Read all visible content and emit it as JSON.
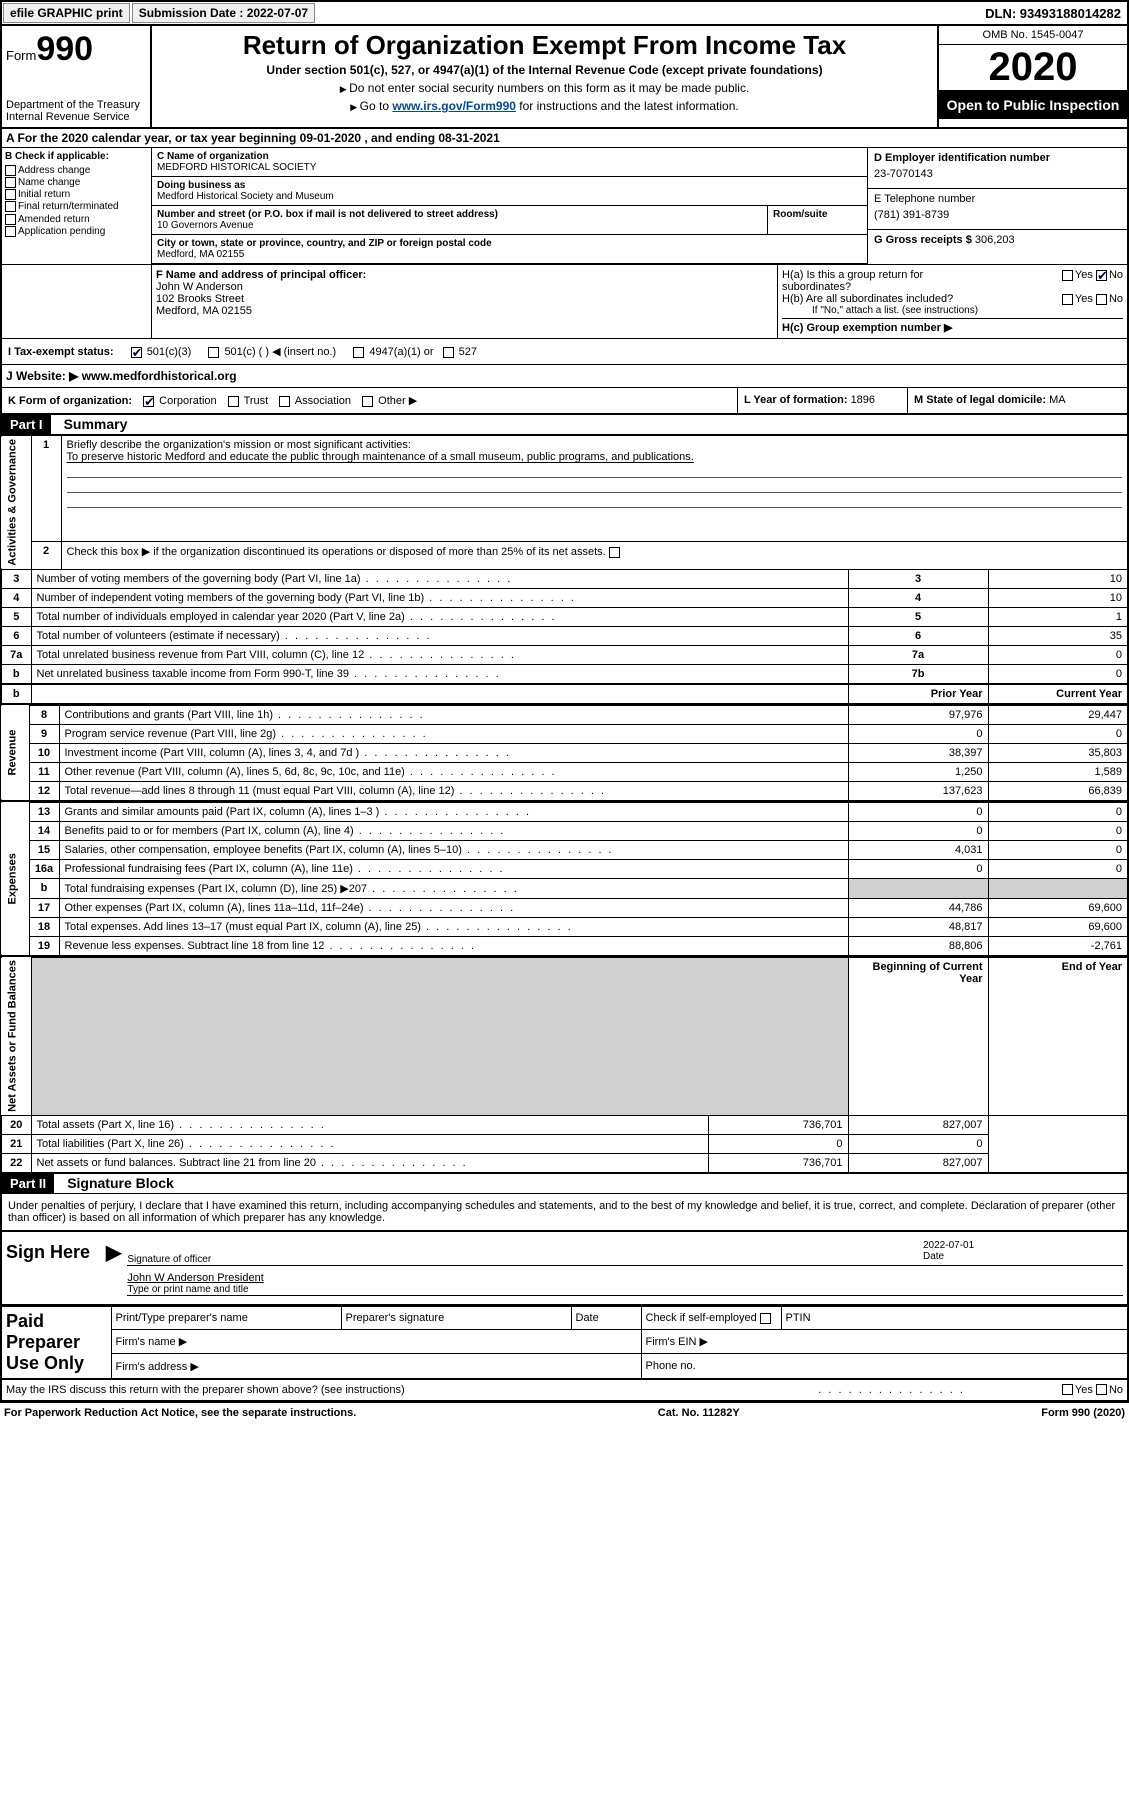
{
  "topbar": {
    "efile": "efile GRAPHIC print",
    "submission_label": "Submission Date : 2022-07-07",
    "dln": "DLN: 93493188014282"
  },
  "header": {
    "form_word": "Form",
    "form_num": "990",
    "dept": "Department of the Treasury",
    "irs": "Internal Revenue Service",
    "title": "Return of Organization Exempt From Income Tax",
    "subtitle": "Under section 501(c), 527, or 4947(a)(1) of the Internal Revenue Code (except private foundations)",
    "line1": "Do not enter social security numbers on this form as it may be made public.",
    "line2_a": "Go to ",
    "line2_link": "www.irs.gov/Form990",
    "line2_b": " for instructions and the latest information.",
    "omb": "OMB No. 1545-0047",
    "year": "2020",
    "open": "Open to Public Inspection"
  },
  "sectionA": "A  For the 2020 calendar year, or tax year beginning 09-01-2020   , and ending 08-31-2021",
  "boxB": {
    "label": "B Check if applicable:",
    "items": [
      "Address change",
      "Name change",
      "Initial return",
      "Final return/terminated",
      "Amended return",
      "Application pending"
    ]
  },
  "boxC": {
    "name_label": "C Name of organization",
    "name": "MEDFORD HISTORICAL SOCIETY",
    "dba_label": "Doing business as",
    "dba": "Medford Historical Society and Museum",
    "addr_label": "Number and street (or P.O. box if mail is not delivered to street address)",
    "room_label": "Room/suite",
    "addr": "10 Governors Avenue",
    "city_label": "City or town, state or province, country, and ZIP or foreign postal code",
    "city": "Medford, MA  02155"
  },
  "boxD": {
    "label": "D Employer identification number",
    "val": "23-7070143"
  },
  "boxE": {
    "label": "E Telephone number",
    "val": "(781) 391-8739"
  },
  "boxG": {
    "label": "G Gross receipts $ ",
    "val": "306,203"
  },
  "boxF": {
    "label": "F  Name and address of principal officer:",
    "name": "John W Anderson",
    "street": "102 Brooks Street",
    "city": "Medford, MA  02155"
  },
  "boxH": {
    "ha": "H(a)  Is this a group return for subordinates?",
    "hb": "H(b)  Are all subordinates included?",
    "hb_note": "If \"No,\" attach a list. (see instructions)",
    "hc": "H(c)  Group exemption number ▶",
    "yes": "Yes",
    "no": "No"
  },
  "boxI": {
    "label": "I     Tax-exempt status:",
    "o1": "501(c)(3)",
    "o2": "501(c) (  ) ◀ (insert no.)",
    "o3": "4947(a)(1) or",
    "o4": "527"
  },
  "boxJ": {
    "label": "J    Website: ▶ ",
    "val": "www.medfordhistorical.org"
  },
  "boxK": {
    "label": "K Form of organization:",
    "corp": "Corporation",
    "trust": "Trust",
    "assoc": "Association",
    "other": "Other ▶"
  },
  "boxL": {
    "label": "L Year of formation: ",
    "val": "1896"
  },
  "boxM": {
    "label": "M State of legal domicile: ",
    "val": "MA"
  },
  "part1": {
    "hdr": "Part I",
    "title": "Summary"
  },
  "summary": {
    "gov_label": "Activities & Governance",
    "rev_label": "Revenue",
    "exp_label": "Expenses",
    "net_label": "Net Assets or Fund Balances",
    "l1_label": "Briefly describe the organization's mission or most significant activities:",
    "l1_text": "To preserve historic Medford and educate the public through maintenance of a small museum, public programs, and publications.",
    "l2": "Check this box ▶        if the organization discontinued its operations or disposed of more than 25% of its net assets.",
    "prior": "Prior Year",
    "current": "Current Year",
    "boy": "Beginning of Current Year",
    "eoy": "End of Year",
    "lines": [
      {
        "n": "3",
        "d": "Number of voting members of the governing body (Part VI, line 1a)",
        "r": "3",
        "v": "10"
      },
      {
        "n": "4",
        "d": "Number of independent voting members of the governing body (Part VI, line 1b)",
        "r": "4",
        "v": "10"
      },
      {
        "n": "5",
        "d": "Total number of individuals employed in calendar year 2020 (Part V, line 2a)",
        "r": "5",
        "v": "1"
      },
      {
        "n": "6",
        "d": "Total number of volunteers (estimate if necessary)",
        "r": "6",
        "v": "35"
      },
      {
        "n": "7a",
        "d": "Total unrelated business revenue from Part VIII, column (C), line 12",
        "r": "7a",
        "v": "0"
      },
      {
        "n": "b",
        "d": "Net unrelated business taxable income from Form 990-T, line 39",
        "r": "7b",
        "v": "0"
      }
    ],
    "revenue": [
      {
        "n": "8",
        "d": "Contributions and grants (Part VIII, line 1h)",
        "p": "97,976",
        "c": "29,447"
      },
      {
        "n": "9",
        "d": "Program service revenue (Part VIII, line 2g)",
        "p": "0",
        "c": "0"
      },
      {
        "n": "10",
        "d": "Investment income (Part VIII, column (A), lines 3, 4, and 7d )",
        "p": "38,397",
        "c": "35,803"
      },
      {
        "n": "11",
        "d": "Other revenue (Part VIII, column (A), lines 5, 6d, 8c, 9c, 10c, and 11e)",
        "p": "1,250",
        "c": "1,589"
      },
      {
        "n": "12",
        "d": "Total revenue—add lines 8 through 11 (must equal Part VIII, column (A), line 12)",
        "p": "137,623",
        "c": "66,839"
      }
    ],
    "expenses": [
      {
        "n": "13",
        "d": "Grants and similar amounts paid (Part IX, column (A), lines 1–3 )",
        "p": "0",
        "c": "0"
      },
      {
        "n": "14",
        "d": "Benefits paid to or for members (Part IX, column (A), line 4)",
        "p": "0",
        "c": "0"
      },
      {
        "n": "15",
        "d": "Salaries, other compensation, employee benefits (Part IX, column (A), lines 5–10)",
        "p": "4,031",
        "c": "0"
      },
      {
        "n": "16a",
        "d": "Professional fundraising fees (Part IX, column (A), line 11e)",
        "p": "0",
        "c": "0"
      },
      {
        "n": "b",
        "d": "Total fundraising expenses (Part IX, column (D), line 25) ▶207",
        "p": "",
        "c": "",
        "shade": true
      },
      {
        "n": "17",
        "d": "Other expenses (Part IX, column (A), lines 11a–11d, 11f–24e)",
        "p": "44,786",
        "c": "69,600"
      },
      {
        "n": "18",
        "d": "Total expenses. Add lines 13–17 (must equal Part IX, column (A), line 25)",
        "p": "48,817",
        "c": "69,600"
      },
      {
        "n": "19",
        "d": "Revenue less expenses. Subtract line 18 from line 12",
        "p": "88,806",
        "c": "-2,761"
      }
    ],
    "netassets": [
      {
        "n": "20",
        "d": "Total assets (Part X, line 16)",
        "p": "736,701",
        "c": "827,007"
      },
      {
        "n": "21",
        "d": "Total liabilities (Part X, line 26)",
        "p": "0",
        "c": "0"
      },
      {
        "n": "22",
        "d": "Net assets or fund balances. Subtract line 21 from line 20",
        "p": "736,701",
        "c": "827,007"
      }
    ]
  },
  "part2": {
    "hdr": "Part II",
    "title": "Signature Block"
  },
  "sig": {
    "decl": "Under penalties of perjury, I declare that I have examined this return, including accompanying schedules and statements, and to the best of my knowledge and belief, it is true, correct, and complete. Declaration of preparer (other than officer) is based on all information of which preparer has any knowledge.",
    "sign_here": "Sign Here",
    "sig_officer": "Signature of officer",
    "date_lbl": "Date",
    "date_val": "2022-07-01",
    "name_title": "John W Anderson  President",
    "type_lbl": "Type or print name and title",
    "paid": "Paid Preparer Use Only",
    "pt_name": "Print/Type preparer's name",
    "pt_sig": "Preparer's signature",
    "pt_date": "Date",
    "pt_check": "Check        if self-employed",
    "pt_ptin": "PTIN",
    "firm_name": "Firm's name   ▶",
    "firm_ein": "Firm's EIN ▶",
    "firm_addr": "Firm's address ▶",
    "phone": "Phone no.",
    "discuss": "May the IRS discuss this return with the preparer shown above? (see instructions)",
    "yes": "Yes",
    "no": "No"
  },
  "footer": {
    "left": "For Paperwork Reduction Act Notice, see the separate instructions.",
    "mid": "Cat. No. 11282Y",
    "right": "Form 990 (2020)"
  }
}
